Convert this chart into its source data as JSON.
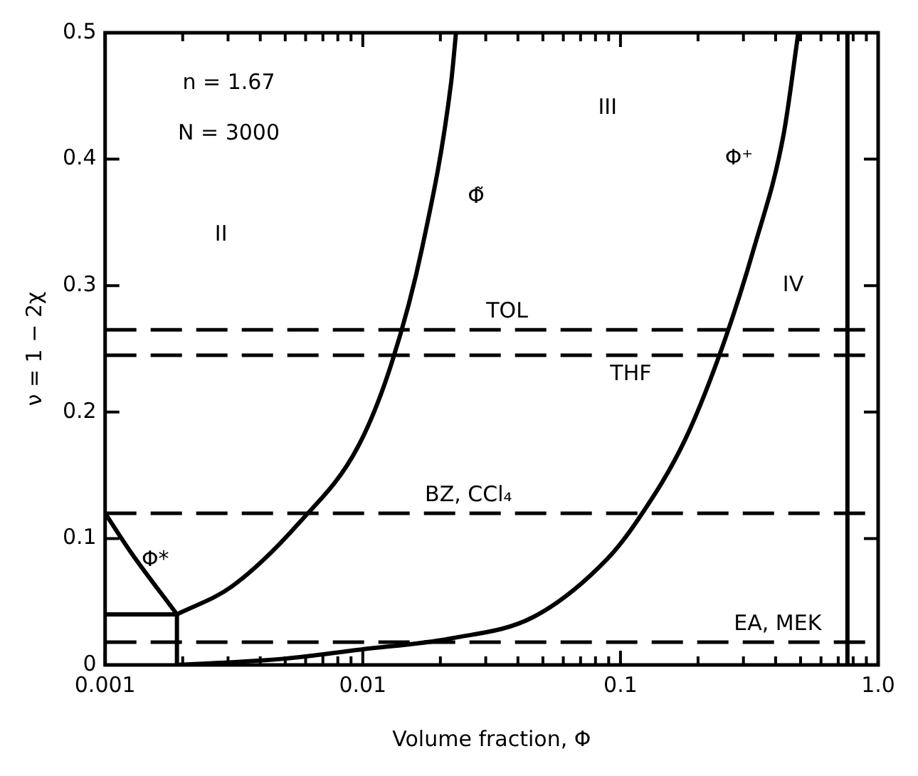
{
  "chart_data": {
    "type": "line",
    "xlabel": "Volume fraction, Φ",
    "ylabel": "ν = 1 − 2χ",
    "log": "x",
    "grid": false,
    "legend": false,
    "marker": "none",
    "line_style": "solid",
    "xlim": [
      0.001,
      1
    ],
    "ylim": [
      0,
      0.5
    ],
    "xticks": [
      {
        "value": 0.001,
        "label": "0.001"
      },
      {
        "value": 0.002,
        "label": null
      },
      {
        "value": 0.003,
        "label": null
      },
      {
        "value": 0.004,
        "label": null
      },
      {
        "value": 0.005,
        "label": null
      },
      {
        "value": 0.006,
        "label": null
      },
      {
        "value": 0.007,
        "label": null
      },
      {
        "value": 0.008,
        "label": null
      },
      {
        "value": 0.009,
        "label": null
      },
      {
        "value": 0.01,
        "label": "0.01"
      },
      {
        "value": 0.02,
        "label": null
      },
      {
        "value": 0.03,
        "label": null
      },
      {
        "value": 0.04,
        "label": null
      },
      {
        "value": 0.05,
        "label": null
      },
      {
        "value": 0.06,
        "label": null
      },
      {
        "value": 0.07,
        "label": null
      },
      {
        "value": 0.08,
        "label": null
      },
      {
        "value": 0.09,
        "label": null
      },
      {
        "value": 0.1,
        "label": "0.1"
      },
      {
        "value": 0.2,
        "label": null
      },
      {
        "value": 0.3,
        "label": null
      },
      {
        "value": 0.4,
        "label": null
      },
      {
        "value": 0.5,
        "label": null
      },
      {
        "value": 0.6,
        "label": null
      },
      {
        "value": 0.7,
        "label": null
      },
      {
        "value": 0.8,
        "label": null
      },
      {
        "value": 0.9,
        "label": null
      },
      {
        "value": 1,
        "label": "1.0"
      }
    ],
    "yticks": [
      0,
      0.1,
      0.2,
      0.3,
      0.4,
      0.5
    ],
    "series": [
      {
        "name": "Φ̃",
        "color": "#000000",
        "x": [
          0.0019,
          0.0031,
          0.0057,
          0.0096,
          0.013,
          0.017,
          0.022,
          0.023
        ],
        "values": [
          0.04,
          0.062,
          0.113,
          0.173,
          0.24,
          0.33,
          0.46,
          0.5
        ]
      },
      {
        "name": "Φ*",
        "color": "#000000",
        "x": [
          0.001,
          0.00125,
          0.0019
        ],
        "values": [
          0.12,
          0.09,
          0.04
        ]
      },
      {
        "name": "Φ⁺",
        "color": "#000000",
        "x": [
          0.0019,
          0.005,
          0.0096,
          0.022,
          0.046,
          0.089,
          0.117,
          0.178,
          0.25,
          0.33,
          0.43,
          0.49
        ],
        "values": [
          0,
          0.005,
          0.012,
          0.021,
          0.038,
          0.084,
          0.115,
          0.178,
          0.253,
          0.33,
          0.42,
          0.5
        ]
      },
      {
        "color": "#000000",
        "x": [
          0.001,
          0.0019,
          0.0019
        ],
        "values": [
          0.04,
          0.04,
          0
        ]
      }
    ],
    "ref_lines": [
      {
        "axis": "y",
        "value": 0.265,
        "label": "TOL",
        "color": "#000000",
        "line_style": "dashed"
      },
      {
        "axis": "y",
        "value": 0.245,
        "label": "THF",
        "color": "#000000",
        "line_style": "dashed"
      },
      {
        "axis": "y",
        "value": 0.12,
        "label": "BZ, CCl₄",
        "color": "#000000",
        "line_style": "dashed"
      },
      {
        "axis": "y",
        "value": 0.018,
        "label": "EA, MEK",
        "color": "#000000",
        "line_style": "dashed"
      },
      {
        "axis": "x",
        "value": 0.76,
        "color": "#000000",
        "line_style": "solid"
      }
    ],
    "annotations": [
      "n = 1.67",
      "N = 3000",
      "II",
      "III",
      "IV"
    ]
  }
}
